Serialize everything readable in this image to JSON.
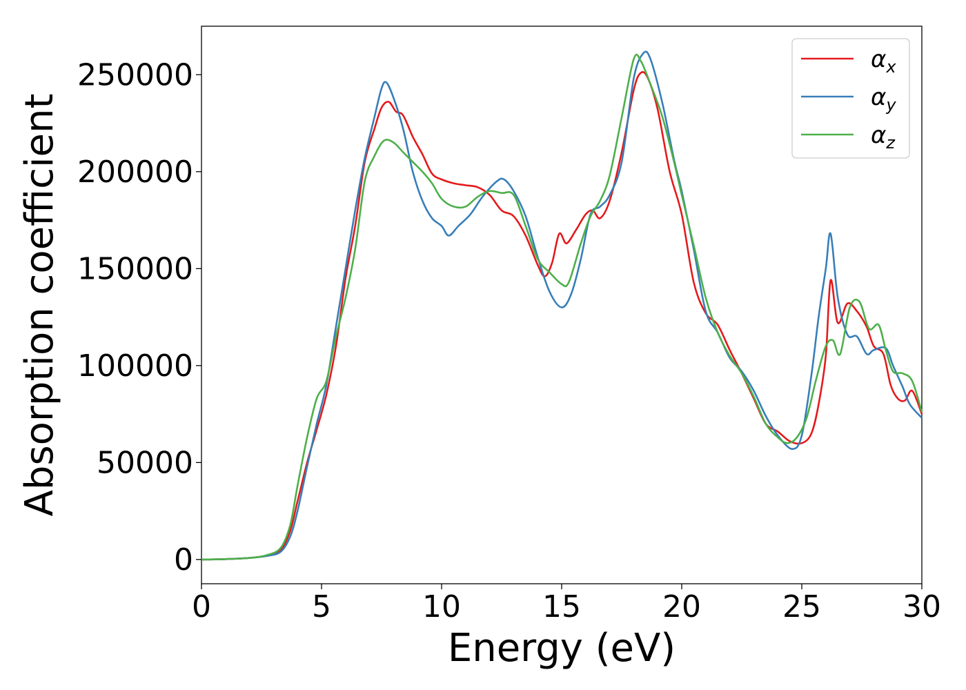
{
  "chart_data": {
    "type": "line",
    "title": "",
    "xlabel": "Energy (eV)",
    "ylabel": "Absorption coefficient",
    "xlim": [
      0,
      30
    ],
    "ylim": [
      -12500,
      275000
    ],
    "xticks": [
      0,
      5,
      10,
      15,
      20,
      25,
      30
    ],
    "xtick_labels": [
      "0",
      "5",
      "10",
      "15",
      "20",
      "25",
      "30"
    ],
    "yticks": [
      0,
      50000,
      100000,
      150000,
      200000,
      250000
    ],
    "ytick_labels": [
      "0",
      "50000",
      "100000",
      "150000",
      "200000",
      "250000"
    ],
    "grid": false,
    "legend_position": "top-right",
    "series": [
      {
        "name": "α",
        "subscript": "x",
        "color": "#e41a1c",
        "points": [
          [
            0,
            0
          ],
          [
            1,
            200
          ],
          [
            2,
            800
          ],
          [
            2.7,
            2000
          ],
          [
            3.3,
            5000
          ],
          [
            3.7,
            15000
          ],
          [
            4,
            30000
          ],
          [
            4.4,
            50000
          ],
          [
            4.8,
            67000
          ],
          [
            5.2,
            85000
          ],
          [
            5.6,
            110000
          ],
          [
            6,
            145000
          ],
          [
            6.4,
            172000
          ],
          [
            6.8,
            205000
          ],
          [
            7.2,
            222000
          ],
          [
            7.5,
            233000
          ],
          [
            7.8,
            236000
          ],
          [
            8.1,
            231000
          ],
          [
            8.4,
            229000
          ],
          [
            8.8,
            218000
          ],
          [
            9.2,
            209000
          ],
          [
            9.6,
            199000
          ],
          [
            10,
            196000
          ],
          [
            10.5,
            194000
          ],
          [
            11,
            193000
          ],
          [
            11.5,
            192000
          ],
          [
            12,
            188000
          ],
          [
            12.5,
            180000
          ],
          [
            13,
            177000
          ],
          [
            13.5,
            167000
          ],
          [
            14,
            152000
          ],
          [
            14.3,
            146000
          ],
          [
            14.6,
            153000
          ],
          [
            14.9,
            168000
          ],
          [
            15.2,
            163000
          ],
          [
            15.6,
            170000
          ],
          [
            16,
            178000
          ],
          [
            16.3,
            180000
          ],
          [
            16.6,
            176000
          ],
          [
            17,
            185000
          ],
          [
            17.5,
            210000
          ],
          [
            18,
            242000
          ],
          [
            18.3,
            251000
          ],
          [
            18.6,
            248000
          ],
          [
            19,
            232000
          ],
          [
            19.5,
            200000
          ],
          [
            20,
            178000
          ],
          [
            20.5,
            143000
          ],
          [
            21,
            127000
          ],
          [
            21.5,
            121000
          ],
          [
            22,
            108000
          ],
          [
            22.5,
            96000
          ],
          [
            23,
            83000
          ],
          [
            23.5,
            70000
          ],
          [
            24,
            66000
          ],
          [
            24.5,
            61000
          ],
          [
            25,
            60000
          ],
          [
            25.4,
            65000
          ],
          [
            25.7,
            80000
          ],
          [
            26,
            105000
          ],
          [
            26.2,
            144000
          ],
          [
            26.5,
            122000
          ],
          [
            26.9,
            132000
          ],
          [
            27.3,
            128000
          ],
          [
            27.7,
            120000
          ],
          [
            28,
            110000
          ],
          [
            28.4,
            106000
          ],
          [
            28.7,
            90000
          ],
          [
            29,
            83000
          ],
          [
            29.3,
            82000
          ],
          [
            29.6,
            87000
          ],
          [
            30,
            75000
          ]
        ]
      },
      {
        "name": "α",
        "subscript": "y",
        "color": "#377eb8",
        "points": [
          [
            0,
            0
          ],
          [
            1,
            200
          ],
          [
            2,
            800
          ],
          [
            2.7,
            1800
          ],
          [
            3.3,
            4000
          ],
          [
            3.7,
            12000
          ],
          [
            4,
            25000
          ],
          [
            4.4,
            48000
          ],
          [
            4.8,
            70000
          ],
          [
            5.2,
            90000
          ],
          [
            5.6,
            120000
          ],
          [
            6,
            150000
          ],
          [
            6.4,
            180000
          ],
          [
            6.8,
            207000
          ],
          [
            7.2,
            228000
          ],
          [
            7.5,
            243000
          ],
          [
            7.7,
            246000
          ],
          [
            8,
            238000
          ],
          [
            8.4,
            222000
          ],
          [
            8.8,
            200000
          ],
          [
            9.2,
            185000
          ],
          [
            9.6,
            176000
          ],
          [
            10,
            172000
          ],
          [
            10.3,
            167000
          ],
          [
            10.7,
            172000
          ],
          [
            11.2,
            178000
          ],
          [
            11.7,
            187000
          ],
          [
            12.3,
            195000
          ],
          [
            12.6,
            196000
          ],
          [
            13,
            190000
          ],
          [
            13.5,
            177000
          ],
          [
            14,
            156000
          ],
          [
            14.5,
            138000
          ],
          [
            15,
            130000
          ],
          [
            15.4,
            137000
          ],
          [
            15.8,
            155000
          ],
          [
            16.2,
            178000
          ],
          [
            16.6,
            182000
          ],
          [
            17,
            188000
          ],
          [
            17.5,
            205000
          ],
          [
            18,
            248000
          ],
          [
            18.4,
            261000
          ],
          [
            18.7,
            258000
          ],
          [
            19.2,
            235000
          ],
          [
            19.7,
            205000
          ],
          [
            20,
            190000
          ],
          [
            20.5,
            160000
          ],
          [
            21,
            128000
          ],
          [
            21.5,
            117000
          ],
          [
            22,
            104000
          ],
          [
            22.5,
            97000
          ],
          [
            23,
            87000
          ],
          [
            23.5,
            74000
          ],
          [
            24,
            64000
          ],
          [
            24.6,
            57000
          ],
          [
            25,
            64000
          ],
          [
            25.4,
            95000
          ],
          [
            25.7,
            125000
          ],
          [
            26,
            150000
          ],
          [
            26.2,
            168000
          ],
          [
            26.5,
            135000
          ],
          [
            26.9,
            116000
          ],
          [
            27.3,
            115000
          ],
          [
            27.7,
            106000
          ],
          [
            28,
            108000
          ],
          [
            28.5,
            109000
          ],
          [
            28.8,
            100000
          ],
          [
            29.2,
            89000
          ],
          [
            29.5,
            80000
          ],
          [
            30,
            73000
          ]
        ]
      },
      {
        "name": "α",
        "subscript": "z",
        "color": "#4daf4a",
        "points": [
          [
            0,
            0
          ],
          [
            1,
            200
          ],
          [
            2,
            800
          ],
          [
            2.7,
            2200
          ],
          [
            3.3,
            6000
          ],
          [
            3.7,
            18000
          ],
          [
            4,
            38000
          ],
          [
            4.4,
            63000
          ],
          [
            4.8,
            83000
          ],
          [
            5.2,
            92000
          ],
          [
            5.6,
            115000
          ],
          [
            6,
            135000
          ],
          [
            6.4,
            160000
          ],
          [
            6.8,
            195000
          ],
          [
            7.2,
            208000
          ],
          [
            7.6,
            216000
          ],
          [
            8,
            215000
          ],
          [
            8.4,
            210000
          ],
          [
            8.8,
            205000
          ],
          [
            9.2,
            200000
          ],
          [
            9.6,
            194000
          ],
          [
            10,
            186000
          ],
          [
            10.5,
            182000
          ],
          [
            11,
            182000
          ],
          [
            11.5,
            187000
          ],
          [
            12,
            190000
          ],
          [
            12.5,
            189000
          ],
          [
            13,
            188000
          ],
          [
            13.5,
            172000
          ],
          [
            14,
            155000
          ],
          [
            14.5,
            148000
          ],
          [
            15,
            142000
          ],
          [
            15.3,
            143000
          ],
          [
            15.8,
            163000
          ],
          [
            16.2,
            177000
          ],
          [
            16.6,
            185000
          ],
          [
            17,
            198000
          ],
          [
            17.5,
            228000
          ],
          [
            18,
            258000
          ],
          [
            18.3,
            257000
          ],
          [
            18.7,
            245000
          ],
          [
            19.2,
            228000
          ],
          [
            19.7,
            204000
          ],
          [
            20,
            188000
          ],
          [
            20.5,
            162000
          ],
          [
            21,
            135000
          ],
          [
            21.5,
            117000
          ],
          [
            22,
            105000
          ],
          [
            22.5,
            96000
          ],
          [
            23,
            84000
          ],
          [
            23.5,
            70000
          ],
          [
            24,
            63000
          ],
          [
            24.4,
            60000
          ],
          [
            24.8,
            63000
          ],
          [
            25.2,
            73000
          ],
          [
            25.6,
            93000
          ],
          [
            26,
            110000
          ],
          [
            26.3,
            113000
          ],
          [
            26.6,
            106000
          ],
          [
            27,
            130000
          ],
          [
            27.4,
            133000
          ],
          [
            27.8,
            119000
          ],
          [
            28.2,
            121000
          ],
          [
            28.5,
            108000
          ],
          [
            28.8,
            97000
          ],
          [
            29.2,
            96000
          ],
          [
            29.6,
            92000
          ],
          [
            30,
            76000
          ]
        ]
      }
    ]
  }
}
